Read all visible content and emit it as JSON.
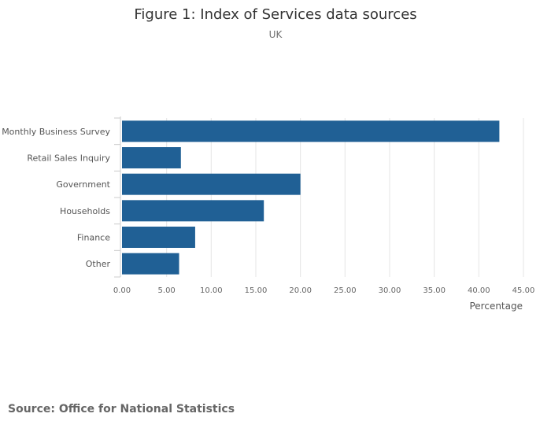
{
  "chart_data": {
    "type": "bar",
    "orientation": "horizontal",
    "title": "Figure 1: Index of Services data sources",
    "subtitle": "UK",
    "categories": [
      "Monthly Business Survey",
      "Retail Sales Inquiry",
      "Government",
      "Households",
      "Finance",
      "Other"
    ],
    "values": [
      42.3,
      6.6,
      20.0,
      15.9,
      8.2,
      6.4
    ],
    "xlabel": "Percentage",
    "ylabel": "",
    "xlim": [
      0,
      45
    ],
    "xticks": [
      "0.00",
      "5.00",
      "10.00",
      "15.00",
      "20.00",
      "25.00",
      "30.00",
      "35.00",
      "40.00",
      "45.00"
    ],
    "tick_step": 5,
    "grid": true,
    "bar_color": "#206095",
    "grid_color": "#e5e5e5"
  },
  "source": {
    "text": "Source: Office for National Statistics"
  }
}
